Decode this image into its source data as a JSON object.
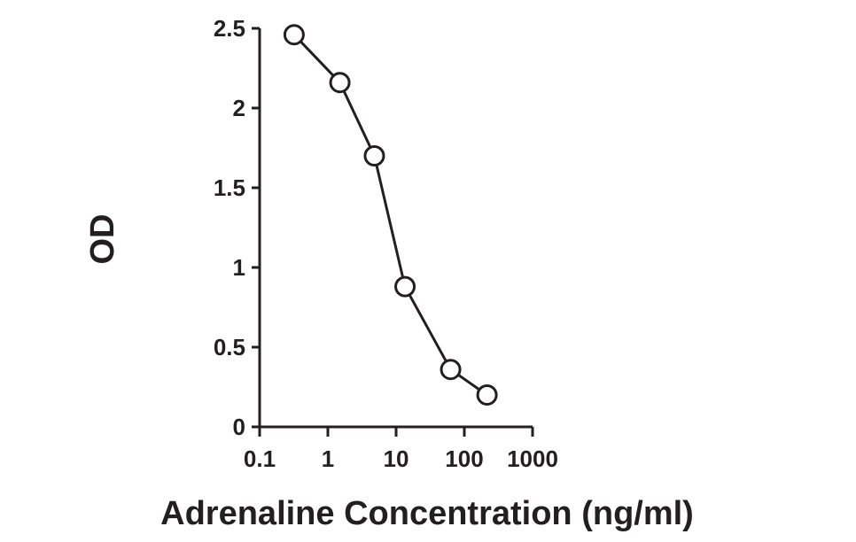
{
  "chart_data": {
    "type": "scatter",
    "xlabel": "Adrenaline Concentration (ng/ml)",
    "ylabel": "OD",
    "xscale": "log",
    "xlim": [
      0.1,
      1000
    ],
    "ylim": [
      0,
      2.5
    ],
    "x_ticks": [
      0.1,
      1,
      10,
      100,
      1000
    ],
    "x_tick_labels": [
      "0.1",
      "1",
      "10",
      "100",
      "1000"
    ],
    "y_ticks": [
      0,
      0.5,
      1,
      1.5,
      2,
      2.5
    ],
    "y_tick_labels": [
      "0",
      "0.5",
      "1",
      "1.5",
      "2",
      "2.5"
    ],
    "markers": "open-circle",
    "connected": true,
    "grid": false,
    "series": [
      {
        "x": [
          0.32,
          1.5,
          4.8,
          13.5,
          63,
          215
        ],
        "y": [
          2.46,
          2.16,
          1.7,
          0.88,
          0.36,
          0.2
        ]
      }
    ]
  }
}
